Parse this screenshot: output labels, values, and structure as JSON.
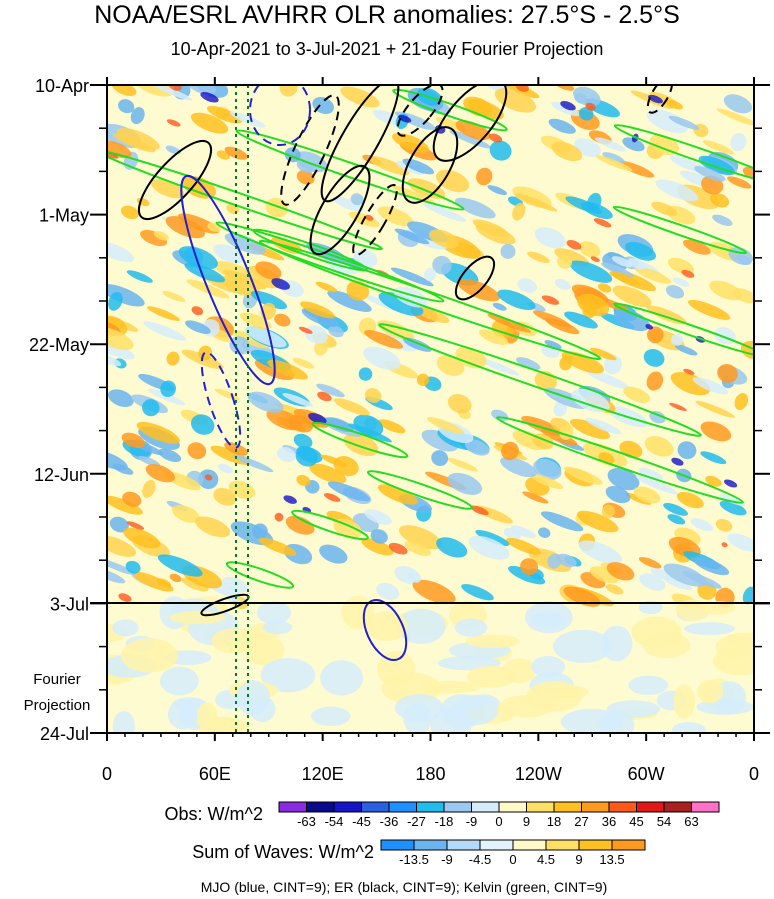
{
  "title": "NOAA/ESRL AVHRR OLR anomalies: 27.5°S - 2.5°S",
  "subtitle": "10-Apr-2021 to 3-Jul-2021 + 21-day Fourier Projection",
  "chart_data": {
    "type": "heatmap",
    "x_tick_labels": [
      "0",
      "60E",
      "120E",
      "180",
      "120W",
      "60W",
      "0"
    ],
    "x_tick_degrees_east": [
      0,
      60,
      120,
      180,
      240,
      300,
      360
    ],
    "y_tick_labels": [
      "10-Apr",
      "1-May",
      "22-May",
      "12-Jun",
      "3-Jul",
      "24-Jul"
    ],
    "time_range": [
      "10-Apr-2021",
      "24-Jul-2021"
    ],
    "observation_end": "3-Jul-2021",
    "projection_label_line1": "Fourier",
    "projection_label_line2": "Projection",
    "dotted_reference_lines_lon": [
      72.5,
      77.5
    ],
    "obs_colorbar": {
      "title": "Obs: W/m^2",
      "labels": [
        "-63",
        "-54",
        "-45",
        "-36",
        "-27",
        "-18",
        "-9",
        "0",
        "9",
        "18",
        "27",
        "36",
        "45",
        "54",
        "63"
      ],
      "colors": [
        "#8a2be2",
        "#0a0a8c",
        "#1414c8",
        "#2a5fe0",
        "#1e90ff",
        "#22bbee",
        "#9ac8f0",
        "#d5ecfb",
        "#fffac8",
        "#ffe066",
        "#ffc020",
        "#ff9a20",
        "#ff5a1a",
        "#e01818",
        "#a82020",
        "#ff70c8"
      ]
    },
    "waves_colorbar": {
      "title": "Sum of Waves: W/m^2",
      "labels": [
        "-13.5",
        "-9",
        "-4.5",
        "0",
        "4.5",
        "9",
        "13.5"
      ],
      "colors": [
        "#1e90ff",
        "#6bb4f0",
        "#b3dbf7",
        "#e2f3fc",
        "#fffac8",
        "#ffe066",
        "#ffc020",
        "#ff9a20"
      ]
    },
    "footer": "MJO (blue, CINT=9); ER (black, CINT=9); Kelvin (green, CINT=9)",
    "contour_series": [
      {
        "name": "MJO",
        "color": "#2020d0"
      },
      {
        "name": "ER",
        "color": "#000000"
      },
      {
        "name": "Kelvin",
        "color": "#22dd22"
      }
    ]
  }
}
